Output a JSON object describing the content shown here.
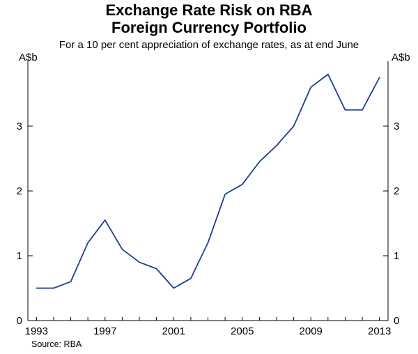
{
  "header": {
    "title_line1": "Exchange Rate Risk on RBA",
    "title_line2": "Foreign Currency Portfolio",
    "subtitle": "For a 10 per cent appreciation of exchange rates, as at end June"
  },
  "axes": {
    "unit_left": "A$b",
    "unit_right": "A$b",
    "y_ticks": [
      0,
      1,
      2,
      3
    ],
    "x_ticks": [
      1993,
      1997,
      2001,
      2005,
      2009,
      2013
    ]
  },
  "source": "Source: RBA",
  "chart_data": {
    "type": "line",
    "title": "Exchange Rate Risk on RBA Foreign Currency Portfolio",
    "subtitle": "For a 10 per cent appreciation of exchange rates, as at end June",
    "ylabel": "A$b",
    "xlim": [
      1992.5,
      2013.5
    ],
    "ylim": [
      0,
      4
    ],
    "grid": false,
    "line_color": "#1d3d94",
    "x": [
      1993,
      1994,
      1995,
      1996,
      1997,
      1998,
      1999,
      2000,
      2001,
      2002,
      2003,
      2004,
      2005,
      2006,
      2007,
      2008,
      2009,
      2010,
      2011,
      2012,
      2013
    ],
    "series": [
      {
        "name": "Exchange rate risk on RBA foreign currency portfolio",
        "values": [
          0.5,
          0.5,
          0.6,
          1.2,
          1.55,
          1.1,
          0.9,
          0.8,
          0.5,
          0.65,
          1.2,
          1.95,
          2.1,
          2.45,
          2.7,
          3.0,
          3.6,
          3.8,
          3.25,
          3.25,
          3.75
        ]
      }
    ]
  }
}
